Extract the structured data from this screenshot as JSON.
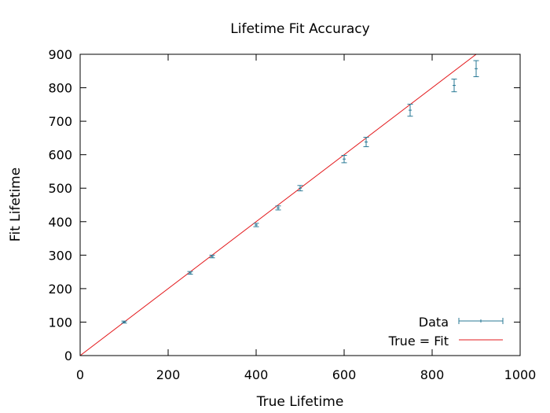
{
  "chart_data": {
    "type": "scatter",
    "title": "Lifetime Fit Accuracy",
    "xlabel": "True Lifetime",
    "ylabel": "Fit Lifetime",
    "xlim": [
      0,
      1000
    ],
    "ylim": [
      0,
      900
    ],
    "xticks": [
      0,
      200,
      400,
      600,
      800,
      1000
    ],
    "yticks": [
      0,
      100,
      200,
      300,
      400,
      500,
      600,
      700,
      800,
      900
    ],
    "grid": false,
    "legend_position": "bottom-right",
    "series": [
      {
        "name": "Data",
        "kind": "errorbar",
        "color": "#2a7a96",
        "points": [
          {
            "x": 100,
            "y": 100,
            "err": 3
          },
          {
            "x": 250,
            "y": 247,
            "err": 4
          },
          {
            "x": 300,
            "y": 296,
            "err": 4
          },
          {
            "x": 400,
            "y": 390,
            "err": 5
          },
          {
            "x": 450,
            "y": 441,
            "err": 6
          },
          {
            "x": 500,
            "y": 500,
            "err": 8
          },
          {
            "x": 600,
            "y": 587,
            "err": 11
          },
          {
            "x": 650,
            "y": 638,
            "err": 14
          },
          {
            "x": 750,
            "y": 733,
            "err": 18
          },
          {
            "x": 850,
            "y": 807,
            "err": 19
          },
          {
            "x": 900,
            "y": 857,
            "err": 24
          }
        ]
      },
      {
        "name": "True = Fit",
        "kind": "line",
        "color": "#e3191c",
        "x": [
          0,
          1000
        ],
        "y": [
          0,
          1000
        ]
      }
    ]
  }
}
